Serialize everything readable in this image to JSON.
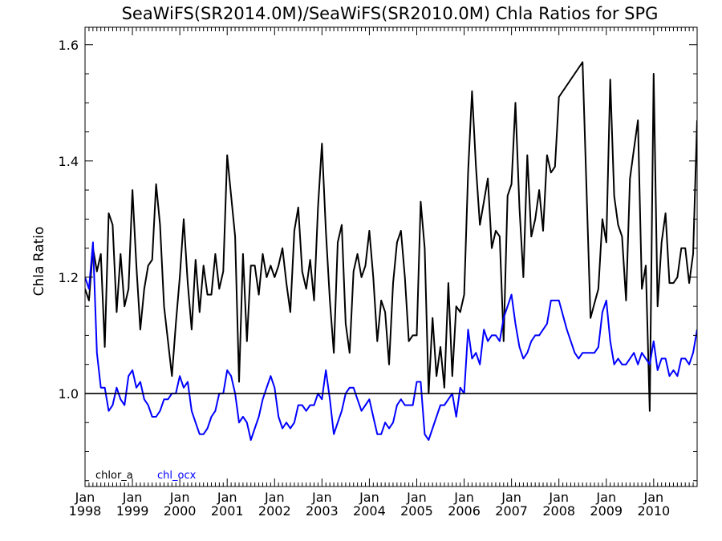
{
  "chart_data": {
    "type": "line",
    "title": "SeaWiFS(SR2014.0M)/SeaWiFS(SR2010.0M)  Chla Ratios for SPG",
    "ylabel": "Chla Ratio",
    "xlabel": "",
    "xlim": [
      1998.0,
      2010.917
    ],
    "ylim": [
      0.84,
      1.63
    ],
    "y_ticks": [
      {
        "value": 1.0,
        "label": "1.0"
      },
      {
        "value": 1.2,
        "label": "1.2"
      },
      {
        "value": 1.4,
        "label": "1.4"
      },
      {
        "value": 1.6,
        "label": "1.6"
      }
    ],
    "x_ticks": [
      {
        "value": 1998,
        "month": "Jan",
        "year": "1998"
      },
      {
        "value": 1999,
        "month": "Jan",
        "year": "1999"
      },
      {
        "value": 2000,
        "month": "Jan",
        "year": "2000"
      },
      {
        "value": 2001,
        "month": "Jan",
        "year": "2001"
      },
      {
        "value": 2002,
        "month": "Jan",
        "year": "2002"
      },
      {
        "value": 2003,
        "month": "Jan",
        "year": "2003"
      },
      {
        "value": 2004,
        "month": "Jan",
        "year": "2004"
      },
      {
        "value": 2005,
        "month": "Jan",
        "year": "2005"
      },
      {
        "value": 2006,
        "month": "Jan",
        "year": "2006"
      },
      {
        "value": 2007,
        "month": "Jan",
        "year": "2007"
      },
      {
        "value": 2008,
        "month": "Jan",
        "year": "2008"
      },
      {
        "value": 2009,
        "month": "Jan",
        "year": "2009"
      },
      {
        "value": 2010,
        "month": "Jan",
        "year": "2010"
      }
    ],
    "reference_line": {
      "y": 1.0,
      "color": "#000000"
    },
    "legend": "bottom-left",
    "grid": false,
    "series": [
      {
        "name": "chlor_a",
        "color": "#000000",
        "x": [
          1998.0,
          1998.083,
          1998.167,
          1998.25,
          1998.333,
          1998.417,
          1998.5,
          1998.583,
          1998.667,
          1998.75,
          1998.833,
          1998.917,
          1999.0,
          1999.083,
          1999.167,
          1999.25,
          1999.333,
          1999.417,
          1999.5,
          1999.583,
          1999.667,
          1999.75,
          1999.833,
          1999.917,
          2000.0,
          2000.083,
          2000.167,
          2000.25,
          2000.333,
          2000.417,
          2000.5,
          2000.583,
          2000.667,
          2000.75,
          2000.833,
          2000.917,
          2001.0,
          2001.083,
          2001.167,
          2001.25,
          2001.333,
          2001.417,
          2001.5,
          2001.583,
          2001.667,
          2001.75,
          2001.833,
          2001.917,
          2002.0,
          2002.083,
          2002.167,
          2002.25,
          2002.333,
          2002.417,
          2002.5,
          2002.583,
          2002.667,
          2002.75,
          2002.833,
          2002.917,
          2003.0,
          2003.083,
          2003.167,
          2003.25,
          2003.333,
          2003.417,
          2003.5,
          2003.583,
          2003.667,
          2003.75,
          2003.833,
          2003.917,
          2004.0,
          2004.083,
          2004.167,
          2004.25,
          2004.333,
          2004.417,
          2004.5,
          2004.583,
          2004.667,
          2004.75,
          2004.833,
          2004.917,
          2005.0,
          2005.083,
          2005.167,
          2005.25,
          2005.333,
          2005.417,
          2005.5,
          2005.583,
          2005.667,
          2005.75,
          2005.833,
          2005.917,
          2006.0,
          2006.083,
          2006.167,
          2006.25,
          2006.333,
          2006.417,
          2006.5,
          2006.583,
          2006.667,
          2006.75,
          2006.833,
          2006.917,
          2007.0,
          2007.083,
          2007.167,
          2007.25,
          2007.333,
          2007.417,
          2007.5,
          2007.583,
          2007.667,
          2007.75,
          2007.833,
          2007.917,
          2008.0,
          2008.5,
          2008.667,
          2008.833,
          2008.917,
          2009.0,
          2009.083,
          2009.167,
          2009.25,
          2009.333,
          2009.417,
          2009.5,
          2009.583,
          2009.667,
          2009.75,
          2009.833,
          2009.917,
          2010.0,
          2010.083,
          2010.167,
          2010.25,
          2010.333,
          2010.417,
          2010.5,
          2010.583,
          2010.667,
          2010.75,
          2010.833,
          2010.917
        ],
        "y": [
          1.18,
          1.16,
          1.25,
          1.21,
          1.24,
          1.08,
          1.31,
          1.29,
          1.14,
          1.24,
          1.15,
          1.18,
          1.35,
          1.22,
          1.11,
          1.18,
          1.22,
          1.23,
          1.36,
          1.29,
          1.15,
          1.09,
          1.03,
          1.12,
          1.2,
          1.3,
          1.19,
          1.11,
          1.23,
          1.14,
          1.22,
          1.17,
          1.17,
          1.24,
          1.18,
          1.21,
          1.41,
          1.34,
          1.27,
          1.02,
          1.24,
          1.09,
          1.22,
          1.22,
          1.17,
          1.24,
          1.2,
          1.22,
          1.2,
          1.22,
          1.25,
          1.19,
          1.14,
          1.28,
          1.32,
          1.21,
          1.18,
          1.23,
          1.16,
          1.32,
          1.43,
          1.28,
          1.16,
          1.07,
          1.26,
          1.29,
          1.12,
          1.07,
          1.21,
          1.24,
          1.2,
          1.22,
          1.28,
          1.2,
          1.09,
          1.16,
          1.14,
          1.05,
          1.19,
          1.26,
          1.28,
          1.2,
          1.09,
          1.1,
          1.1,
          1.33,
          1.25,
          1.0,
          1.13,
          1.03,
          1.08,
          1.01,
          1.19,
          1.03,
          1.15,
          1.14,
          1.17,
          1.38,
          1.52,
          1.39,
          1.29,
          1.33,
          1.37,
          1.25,
          1.28,
          1.27,
          1.09,
          1.34,
          1.36,
          1.5,
          1.32,
          1.2,
          1.41,
          1.27,
          1.3,
          1.35,
          1.28,
          1.41,
          1.38,
          1.39,
          1.51,
          1.57,
          1.13,
          1.18,
          1.3,
          1.26,
          1.54,
          1.34,
          1.29,
          1.27,
          1.16,
          1.37,
          1.42,
          1.47,
          1.18,
          1.22,
          0.97,
          1.55,
          1.15,
          1.26,
          1.31,
          1.19,
          1.19,
          1.2,
          1.25,
          1.25,
          1.19,
          1.24,
          1.47
        ]
      },
      {
        "name": "chl_ocx",
        "color": "#0000ff",
        "x": [
          1998.0,
          1998.083,
          1998.167,
          1998.25,
          1998.333,
          1998.417,
          1998.5,
          1998.583,
          1998.667,
          1998.75,
          1998.833,
          1998.917,
          1999.0,
          1999.083,
          1999.167,
          1999.25,
          1999.333,
          1999.417,
          1999.5,
          1999.583,
          1999.667,
          1999.75,
          1999.833,
          1999.917,
          2000.0,
          2000.083,
          2000.167,
          2000.25,
          2000.333,
          2000.417,
          2000.5,
          2000.583,
          2000.667,
          2000.75,
          2000.833,
          2000.917,
          2001.0,
          2001.083,
          2001.167,
          2001.25,
          2001.333,
          2001.417,
          2001.5,
          2001.583,
          2001.667,
          2001.75,
          2001.833,
          2001.917,
          2002.0,
          2002.083,
          2002.167,
          2002.25,
          2002.333,
          2002.417,
          2002.5,
          2002.583,
          2002.667,
          2002.75,
          2002.833,
          2002.917,
          2003.0,
          2003.083,
          2003.167,
          2003.25,
          2003.333,
          2003.417,
          2003.5,
          2003.583,
          2003.667,
          2003.75,
          2003.833,
          2003.917,
          2004.0,
          2004.083,
          2004.167,
          2004.25,
          2004.333,
          2004.417,
          2004.5,
          2004.583,
          2004.667,
          2004.75,
          2004.833,
          2004.917,
          2005.0,
          2005.083,
          2005.167,
          2005.25,
          2005.333,
          2005.417,
          2005.5,
          2005.583,
          2005.667,
          2005.75,
          2005.833,
          2005.917,
          2006.0,
          2006.083,
          2006.167,
          2006.25,
          2006.333,
          2006.417,
          2006.5,
          2006.583,
          2006.667,
          2006.75,
          2006.833,
          2006.917,
          2007.0,
          2007.083,
          2007.167,
          2007.25,
          2007.333,
          2007.417,
          2007.5,
          2007.583,
          2007.667,
          2007.75,
          2007.833,
          2007.917,
          2008.0,
          2008.167,
          2008.333,
          2008.417,
          2008.5,
          2008.667,
          2008.75,
          2008.833,
          2008.917,
          2009.0,
          2009.083,
          2009.167,
          2009.25,
          2009.333,
          2009.417,
          2009.5,
          2009.583,
          2009.667,
          2009.75,
          2009.833,
          2009.917,
          2010.0,
          2010.083,
          2010.167,
          2010.25,
          2010.333,
          2010.417,
          2010.5,
          2010.583,
          2010.667,
          2010.75,
          2010.833,
          2010.917
        ],
        "y": [
          1.2,
          1.18,
          1.26,
          1.07,
          1.01,
          1.01,
          0.97,
          0.98,
          1.01,
          0.99,
          0.98,
          1.03,
          1.04,
          1.01,
          1.02,
          0.99,
          0.98,
          0.96,
          0.96,
          0.97,
          0.99,
          0.99,
          1.0,
          1.0,
          1.03,
          1.01,
          1.02,
          0.97,
          0.95,
          0.93,
          0.93,
          0.94,
          0.96,
          0.97,
          1.0,
          1.0,
          1.04,
          1.03,
          1.0,
          0.95,
          0.96,
          0.95,
          0.92,
          0.94,
          0.96,
          0.99,
          1.01,
          1.03,
          1.01,
          0.96,
          0.94,
          0.95,
          0.94,
          0.95,
          0.98,
          0.98,
          0.97,
          0.98,
          0.98,
          1.0,
          0.99,
          1.04,
          0.99,
          0.93,
          0.95,
          0.97,
          1.0,
          1.01,
          1.01,
          0.99,
          0.97,
          0.98,
          0.99,
          0.96,
          0.93,
          0.93,
          0.95,
          0.94,
          0.95,
          0.98,
          0.99,
          0.98,
          0.98,
          0.98,
          1.02,
          1.02,
          0.93,
          0.92,
          0.94,
          0.96,
          0.98,
          0.98,
          0.99,
          1.0,
          0.96,
          1.01,
          1.0,
          1.11,
          1.06,
          1.07,
          1.05,
          1.11,
          1.09,
          1.1,
          1.1,
          1.09,
          1.13,
          1.15,
          1.17,
          1.12,
          1.08,
          1.06,
          1.07,
          1.09,
          1.1,
          1.1,
          1.11,
          1.12,
          1.16,
          1.16,
          1.16,
          1.11,
          1.07,
          1.06,
          1.07,
          1.07,
          1.07,
          1.08,
          1.14,
          1.16,
          1.09,
          1.05,
          1.06,
          1.05,
          1.05,
          1.06,
          1.07,
          1.05,
          1.07,
          1.06,
          1.05,
          1.09,
          1.04,
          1.06,
          1.06,
          1.03,
          1.04,
          1.03,
          1.06,
          1.06,
          1.05,
          1.07,
          1.11
        ]
      }
    ]
  }
}
